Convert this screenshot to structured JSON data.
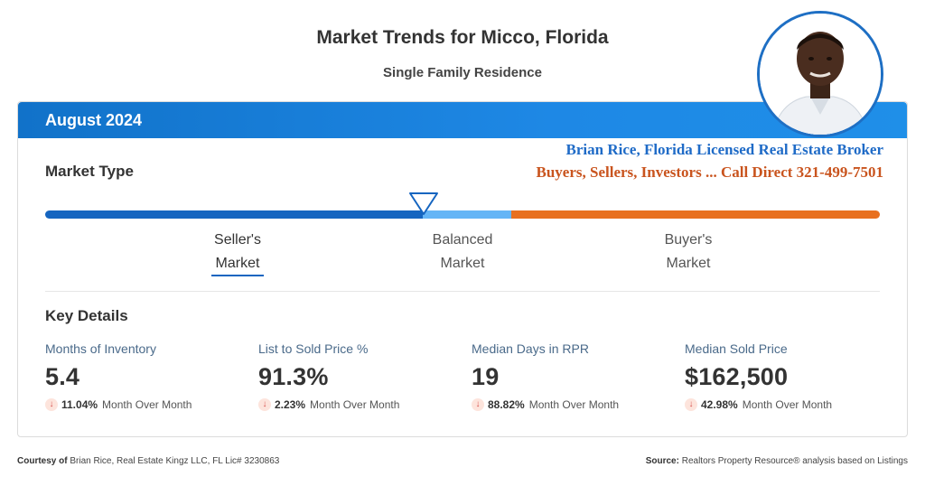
{
  "header": {
    "title": "Market Trends for Micco, Florida",
    "subtitle": "Single Family Residence"
  },
  "card": {
    "month": "August 2024",
    "market_type_label": "Market Type",
    "broker": {
      "line1": "Brian Rice, Florida Licensed Real Estate Broker",
      "line2": "Buyers, Sellers, Investors ... Call Direct 321-499-7501"
    },
    "scale": {
      "sellers_line1": "Seller's",
      "sellers_line2": "Market",
      "balanced_line1": "Balanced",
      "balanced_line2": "Market",
      "buyers_line1": "Buyer's",
      "buyers_line2": "Market",
      "selected": "Seller's Market",
      "colors": {
        "sellers": "#1565c0",
        "balanced": "#64b5f6",
        "buyers": "#e8701f"
      }
    },
    "key_details_label": "Key Details",
    "metrics": [
      {
        "label": "Months of Inventory",
        "value": "5.4",
        "change": "11.04%",
        "period": "Month Over Month",
        "direction": "down"
      },
      {
        "label": "List to Sold Price %",
        "value": "91.3%",
        "change": "2.23%",
        "period": "Month Over Month",
        "direction": "down"
      },
      {
        "label": "Median Days in RPR",
        "value": "19",
        "change": "88.82%",
        "period": "Month Over Month",
        "direction": "down"
      },
      {
        "label": "Median Sold Price",
        "value": "$162,500",
        "change": "42.98%",
        "period": "Month Over Month",
        "direction": "down"
      }
    ]
  },
  "footer": {
    "courtesy_label": "Courtesy of",
    "courtesy_text": "Brian Rice, Real Estate Kingz LLC, FL Lic# 3230863",
    "source_label": "Source:",
    "source_text": "Realtors Property Resource® analysis based on Listings"
  },
  "icons": {
    "change_arrow": "arrow-down-icon",
    "pointer": "triangle-pointer-icon",
    "photo": "agent-avatar"
  }
}
